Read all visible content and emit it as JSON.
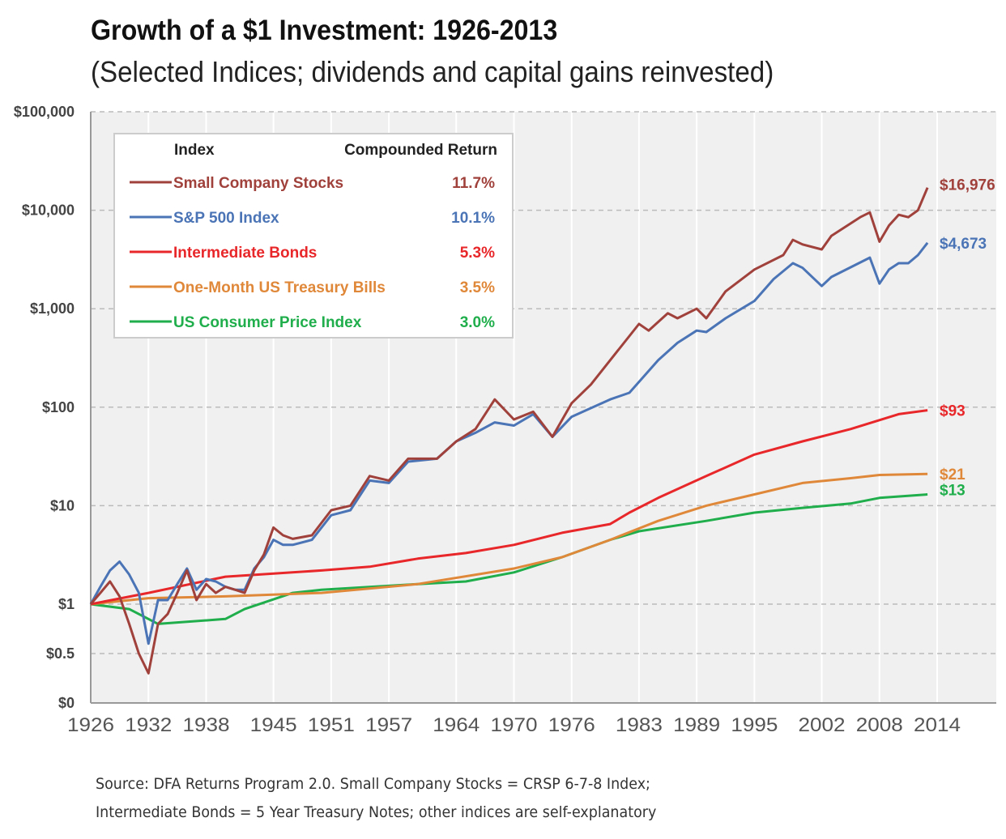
{
  "chart_data": {
    "type": "line",
    "title": "Growth of a $1 Investment: 1926-2013",
    "subtitle": "(Selected Indices; dividends and capital gains reinvested)",
    "xlabel": "",
    "ylabel": "",
    "xlim": [
      1926,
      2014
    ],
    "x_ticks": [
      "1926",
      "1932",
      "1938",
      "1945",
      "1951",
      "1957",
      "1964",
      "1970",
      "1976",
      "1983",
      "1989",
      "1995",
      "2002",
      "2008",
      "2014"
    ],
    "y_scale": "log (linear below $1)",
    "y_ticks": [
      {
        "v": 100000,
        "label": "$100,000"
      },
      {
        "v": 10000,
        "label": "$10,000"
      },
      {
        "v": 1000,
        "label": "$1,000"
      },
      {
        "v": 100,
        "label": "$100"
      },
      {
        "v": 10,
        "label": "$10"
      },
      {
        "v": 1,
        "label": "$1"
      },
      {
        "v": 0.5,
        "label": "$0.5"
      },
      {
        "v": 0,
        "label": "$0"
      }
    ],
    "grid": "horizontal dashed",
    "legend": {
      "placement": "top-left",
      "header_index": "Index",
      "header_return": "Compounded Return"
    },
    "series": [
      {
        "name": "Small Company Stocks",
        "return": "11.7%",
        "end_label": "$16,976",
        "color": "#a0413c",
        "x": [
          1926,
          1927,
          1928,
          1929,
          1930,
          1931,
          1932,
          1933,
          1934,
          1935,
          1936,
          1937,
          1938,
          1939,
          1940,
          1941,
          1942,
          1943,
          1944,
          1945,
          1946,
          1947,
          1949,
          1951,
          1953,
          1955,
          1957,
          1959,
          1962,
          1964,
          1966,
          1968,
          1970,
          1972,
          1974,
          1976,
          1978,
          1980,
          1983,
          1984,
          1986,
          1987,
          1989,
          1990,
          1992,
          1995,
          1998,
          1999,
          2000,
          2002,
          2003,
          2006,
          2007,
          2008,
          2009,
          2010,
          2011,
          2012,
          2013
        ],
        "y": [
          1,
          1.3,
          1.7,
          1.2,
          0.8,
          0.5,
          0.3,
          0.8,
          0.9,
          1.3,
          2.2,
          1.1,
          1.6,
          1.3,
          1.5,
          1.4,
          1.3,
          2.2,
          3.2,
          6,
          5,
          4.6,
          5,
          9,
          10,
          20,
          18,
          30,
          30,
          45,
          60,
          120,
          75,
          90,
          50,
          110,
          170,
          300,
          700,
          600,
          900,
          800,
          1000,
          800,
          1500,
          2500,
          3500,
          5000,
          4500,
          4000,
          5500,
          8500,
          9500,
          4800,
          7000,
          9000,
          8500,
          10000,
          16976
        ]
      },
      {
        "name": "S&P 500 Index",
        "return": "10.1%",
        "end_label": "$4,673",
        "color": "#4a74b5",
        "x": [
          1926,
          1927,
          1928,
          1929,
          1930,
          1931,
          1932,
          1933,
          1934,
          1935,
          1936,
          1937,
          1938,
          1939,
          1940,
          1941,
          1942,
          1943,
          1944,
          1945,
          1946,
          1947,
          1949,
          1951,
          1953,
          1955,
          1957,
          1959,
          1962,
          1964,
          1966,
          1968,
          1970,
          1972,
          1974,
          1976,
          1980,
          1982,
          1985,
          1987,
          1989,
          1990,
          1992,
          1995,
          1997,
          1999,
          2000,
          2002,
          2003,
          2007,
          2008,
          2009,
          2010,
          2011,
          2012,
          2013
        ],
        "y": [
          1,
          1.5,
          2.2,
          2.7,
          2,
          1.3,
          0.6,
          1.1,
          1.1,
          1.6,
          2.3,
          1.4,
          1.8,
          1.7,
          1.5,
          1.4,
          1.4,
          2.3,
          3,
          4.5,
          4,
          4,
          4.5,
          8,
          9,
          18,
          17,
          28,
          30,
          45,
          55,
          70,
          65,
          85,
          50,
          80,
          120,
          140,
          300,
          450,
          600,
          580,
          800,
          1200,
          2000,
          2900,
          2600,
          1700,
          2100,
          3300,
          1800,
          2500,
          2900,
          2900,
          3500,
          4673
        ]
      },
      {
        "name": "Intermediate Bonds",
        "return": "5.3%",
        "end_label": "$93",
        "color": "#e8272a",
        "x": [
          1926,
          1932,
          1940,
          1950,
          1955,
          1960,
          1965,
          1970,
          1975,
          1980,
          1982,
          1985,
          1990,
          1995,
          2000,
          2005,
          2010,
          2013
        ],
        "y": [
          1,
          1.3,
          1.9,
          2.2,
          2.4,
          2.9,
          3.3,
          4,
          5.3,
          6.5,
          8.5,
          12,
          20,
          33,
          45,
          60,
          85,
          93
        ]
      },
      {
        "name": "One-Month US Treasury Bills",
        "return": "3.5%",
        "end_label": "$21",
        "color": "#e0883a",
        "x": [
          1926,
          1932,
          1940,
          1950,
          1960,
          1970,
          1975,
          1980,
          1985,
          1990,
          1995,
          2000,
          2005,
          2008,
          2013
        ],
        "y": [
          1,
          1.15,
          1.2,
          1.3,
          1.6,
          2.3,
          3,
          4.5,
          7,
          10,
          13,
          17,
          19,
          20.5,
          21
        ]
      },
      {
        "name": "US Consumer Price Index",
        "return": "3.0%",
        "end_label": "$13",
        "color": "#1fae4b",
        "x": [
          1926,
          1930,
          1933,
          1940,
          1942,
          1947,
          1950,
          1960,
          1965,
          1970,
          1975,
          1980,
          1983,
          1990,
          1995,
          2000,
          2005,
          2008,
          2013
        ],
        "y": [
          1,
          0.95,
          0.8,
          0.85,
          0.95,
          1.3,
          1.4,
          1.6,
          1.7,
          2.1,
          3,
          4.5,
          5.5,
          7,
          8.5,
          9.5,
          10.5,
          12,
          13
        ]
      }
    ]
  },
  "source": {
    "line1": "Source: DFA Returns Program 2.0. Small Company Stocks = CRSP 6-7-8 Index;",
    "line2": "Intermediate Bonds = 5 Year Treasury Notes; other indices are self-explanatory"
  }
}
